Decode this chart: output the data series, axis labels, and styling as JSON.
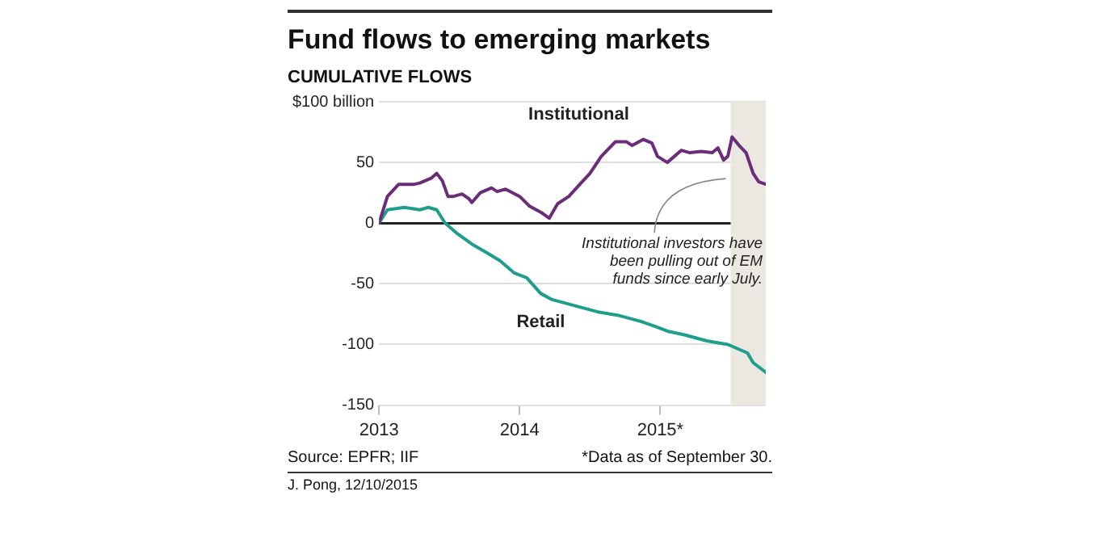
{
  "chart_data": {
    "type": "line",
    "title": "Fund flows to emerging markets",
    "subtitle": "CUMULATIVE FLOWS",
    "xlim": [
      2013,
      2015.75
    ],
    "xticks": [
      2013,
      2014,
      {
        "value": 2015,
        "label": "2015*"
      }
    ],
    "ylim": [
      -150,
      100
    ],
    "yticks": [
      {
        "value": 100,
        "label": "$100 billion"
      },
      50,
      0,
      -50,
      -100,
      -150
    ],
    "grid": "y",
    "legend": false,
    "marker": "none",
    "line_style": "solid",
    "bands": [
      {
        "axis": "x",
        "from": 2015.5,
        "to": 2015.75,
        "color": "#ebe8e2"
      }
    ],
    "series": [
      {
        "name": "Institutional",
        "color": "#6b2d7a",
        "x": [
          2013.0,
          2013.06,
          2013.14,
          2013.25,
          2013.29,
          2013.37,
          2013.41,
          2013.45,
          2013.49,
          2013.53,
          2013.59,
          2013.64,
          2013.66,
          2013.72,
          2013.8,
          2013.84,
          2013.9,
          2014.0,
          2014.07,
          2014.15,
          2014.21,
          2014.27,
          2014.35,
          2014.42,
          2014.5,
          2014.58,
          2014.68,
          2014.76,
          2014.8,
          2014.88,
          2014.94,
          2014.98,
          2015.05,
          2015.15,
          2015.21,
          2015.29,
          2015.37,
          2015.41,
          2015.45,
          2015.48,
          2015.51,
          2015.56,
          2015.61,
          2015.66,
          2015.7,
          2015.75
        ],
        "values": [
          0,
          22,
          32,
          32,
          33,
          37,
          41,
          35,
          22,
          22,
          24,
          20,
          17,
          25,
          29,
          26,
          28,
          22,
          14,
          9,
          4,
          16,
          22,
          31,
          41,
          55,
          67,
          67,
          64,
          69,
          66,
          55,
          50,
          60,
          58,
          59,
          58,
          62,
          52,
          55,
          71,
          64,
          58,
          41,
          34,
          32
        ]
      },
      {
        "name": "Retail",
        "color": "#1f9e8e",
        "x": [
          2013.0,
          2013.06,
          2013.18,
          2013.29,
          2013.35,
          2013.41,
          2013.47,
          2013.55,
          2013.67,
          2013.76,
          2013.86,
          2013.96,
          2014.05,
          2014.15,
          2014.23,
          2014.39,
          2014.55,
          2014.7,
          2014.86,
          2014.96,
          2015.05,
          2015.17,
          2015.33,
          2015.48,
          2015.62,
          2015.66,
          2015.75
        ],
        "values": [
          0,
          11,
          13,
          11,
          13,
          11,
          0,
          -8,
          -18,
          -24,
          -31,
          -41,
          -45,
          -58,
          -63,
          -68,
          -73,
          -76,
          -81,
          -85,
          -89,
          -92,
          -97,
          -100,
          -107,
          -115,
          -123
        ]
      }
    ],
    "annotations": [
      {
        "text": "Institutional investors have been pulling out of EM funds since early July.",
        "x": 2015.5,
        "y": 38
      },
      "Source: EPFR; IIF",
      "*Data as of September 30.",
      "J. Pong, 12/10/2015"
    ]
  }
}
